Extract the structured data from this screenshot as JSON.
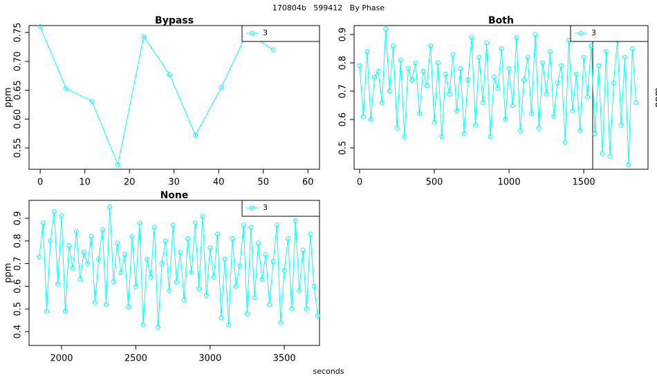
{
  "title": "170804b   599412   By Phase",
  "xlabel": "seconds",
  "chart_data": [
    {
      "type": "line",
      "title": "Bypass",
      "ylabel": "ppm",
      "legend": "topright",
      "marker": "circle",
      "series": [
        {
          "name": "3",
          "color": "#00ffff",
          "x": [
            0,
            5.8,
            11.6,
            17.4,
            23.2,
            29,
            34.8,
            40.6,
            46.4,
            52.2
          ],
          "values": [
            0.76,
            0.653,
            0.631,
            0.521,
            0.743,
            0.677,
            0.572,
            0.655,
            0.75,
            0.72
          ]
        }
      ],
      "xlim": [
        -2.5,
        62.6
      ],
      "xticks": [
        0,
        10,
        20,
        30,
        40,
        50,
        60
      ],
      "ylim": [
        0.513,
        0.762
      ],
      "yticks": [
        0.55,
        {
          "value": 0.6,
          "label": "0.60"
        },
        0.65,
        {
          "value": 0.7,
          "label": "0.70"
        },
        0.75
      ]
    },
    {
      "type": "line",
      "title": "Both",
      "ylabel": "ppm",
      "legend": "topright",
      "marker": "circle",
      "vlines": [
        1560
      ],
      "series": [
        {
          "name": "3",
          "color": "#00ffff",
          "x": [
            0,
            25,
            50,
            75,
            100,
            125,
            150,
            175,
            200,
            225,
            250,
            275,
            300,
            325,
            350,
            375,
            400,
            425,
            450,
            475,
            500,
            525,
            550,
            575,
            600,
            625,
            650,
            675,
            700,
            725,
            750,
            775,
            800,
            825,
            850,
            875,
            900,
            925,
            950,
            975,
            1000,
            1025,
            1050,
            1075,
            1100,
            1125,
            1150,
            1175,
            1200,
            1225,
            1250,
            1275,
            1300,
            1325,
            1350,
            1375,
            1400,
            1425,
            1450,
            1475,
            1500,
            1525,
            1550,
            1575,
            1600,
            1625,
            1650,
            1675,
            1700,
            1725,
            1750,
            1775,
            1800,
            1825,
            1850
          ],
          "values": [
            0.79,
            0.61,
            0.84,
            0.6,
            0.75,
            0.77,
            0.66,
            0.92,
            0.7,
            0.86,
            0.57,
            0.81,
            0.54,
            0.78,
            0.74,
            0.8,
            0.62,
            0.77,
            0.72,
            0.86,
            0.59,
            0.8,
            0.54,
            0.76,
            0.69,
            0.83,
            0.63,
            0.78,
            0.55,
            0.74,
            0.89,
            0.58,
            0.82,
            0.66,
            0.87,
            0.54,
            0.75,
            0.71,
            0.85,
            0.6,
            0.78,
            0.65,
            0.89,
            0.56,
            0.74,
            0.82,
            0.62,
            0.9,
            0.57,
            0.8,
            0.69,
            0.84,
            0.61,
            0.73,
            0.79,
            0.52,
            0.88,
            0.63,
            0.76,
            0.56,
            0.82,
            0.68,
            0.86,
            0.55,
            0.79,
            0.48,
            0.84,
            0.47,
            0.73,
            0.88,
            0.58,
            0.82,
            0.44,
            0.85,
            0.66
          ]
        }
      ],
      "xlim": [
        -37,
        1930
      ],
      "xticks": [
        0,
        500,
        1000,
        1500
      ],
      "ylim": [
        0.4244,
        0.9317
      ],
      "yticks": [
        0.5,
        0.6,
        0.7,
        0.8,
        0.9
      ]
    },
    {
      "type": "line",
      "title": "None",
      "ylabel": "ppm",
      "legend": "topright",
      "marker": "circle",
      "series": [
        {
          "name": "3",
          "color": "#00ffff",
          "x": [
            1850,
            1875,
            1900,
            1925,
            1950,
            1975,
            2000,
            2025,
            2050,
            2075,
            2100,
            2125,
            2150,
            2175,
            2200,
            2225,
            2250,
            2275,
            2300,
            2325,
            2350,
            2375,
            2400,
            2425,
            2450,
            2475,
            2500,
            2525,
            2550,
            2575,
            2600,
            2625,
            2650,
            2675,
            2700,
            2725,
            2750,
            2775,
            2800,
            2825,
            2850,
            2875,
            2900,
            2925,
            2950,
            2975,
            3000,
            3025,
            3050,
            3075,
            3100,
            3125,
            3150,
            3175,
            3200,
            3225,
            3250,
            3275,
            3300,
            3325,
            3350,
            3375,
            3400,
            3425,
            3450,
            3475,
            3500,
            3525,
            3550,
            3575,
            3600,
            3625,
            3650,
            3675,
            3700,
            3725
          ],
          "values": [
            0.73,
            0.88,
            0.49,
            0.8,
            0.93,
            0.61,
            0.91,
            0.49,
            0.78,
            0.68,
            0.84,
            0.63,
            0.75,
            0.7,
            0.82,
            0.53,
            0.72,
            0.85,
            0.52,
            0.95,
            0.62,
            0.79,
            0.66,
            0.74,
            0.51,
            0.82,
            0.6,
            0.88,
            0.43,
            0.72,
            0.64,
            0.86,
            0.42,
            0.7,
            0.8,
            0.58,
            0.87,
            0.62,
            0.75,
            0.54,
            0.81,
            0.66,
            0.88,
            0.59,
            0.91,
            0.56,
            0.77,
            0.64,
            0.83,
            0.46,
            0.72,
            0.43,
            0.81,
            0.6,
            0.69,
            0.87,
            0.48,
            0.86,
            0.55,
            0.79,
            0.63,
            0.74,
            0.52,
            0.71,
            0.87,
            0.44,
            0.67,
            0.81,
            0.5,
            0.89,
            0.58,
            0.76,
            0.5,
            0.83,
            0.6,
            0.47
          ]
        }
      ],
      "xlim": [
        1781,
        3737
      ],
      "xticks": [
        2000,
        2500,
        3000,
        3500
      ],
      "ylim": [
        0.339,
        0.979
      ],
      "yticks": [
        0.4,
        0.5,
        0.6,
        0.7,
        0.8,
        0.9
      ]
    }
  ]
}
